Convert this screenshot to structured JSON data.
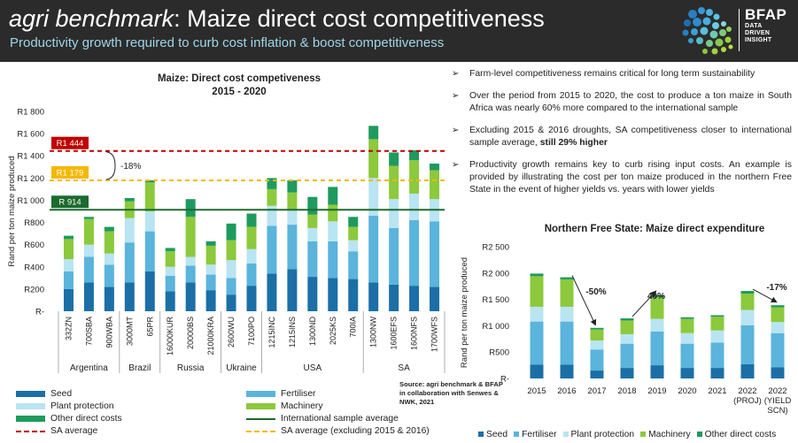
{
  "header": {
    "title_italic": "agri benchmark",
    "title_rest": ": Maize direct cost competitiveness",
    "subtitle": "Productivity growth required to curb cost inflation & boost competitiveness",
    "logo_name": "BFAP",
    "logo_tag": [
      "DATA",
      "DRIVEN",
      "INSIGHT"
    ]
  },
  "colors": {
    "seed": "#1b6fa6",
    "fertiliser": "#5ab4dc",
    "plant_protection": "#b9e4f2",
    "machinery": "#8cc93c",
    "other": "#1f9a5e",
    "intl_avg": "#1b6b2e",
    "sa_avg": "#c00000",
    "sa_avg_excl": "#f2b900",
    "label_sa": "#c00000",
    "label_excl": "#f5b800",
    "label_intl": "#1b6b2e"
  },
  "bullets": [
    {
      "text": "Farm-level competitiveness remains critical for long term sustainability",
      "bold": ""
    },
    {
      "text": "Over the period from 2015 to 2020, the cost to produce a ton maize in South Africa was nearly 60% more compared to the international sample",
      "bold": ""
    },
    {
      "text": "Excluding 2015 & 2016 droughts, SA competitiveness closer to international sample average, ",
      "bold": "still 29% higher"
    },
    {
      "text": "Productivity growth remains key to curb rising input costs. An example is provided by illustrating the cost per ton maize produced in the northern Free State in the event of higher yields vs. years with lower yields",
      "bold": ""
    }
  ],
  "source": "Source: agri benchmark & BFAP in collaboration with Senwes & NWK, 2021",
  "legend1": [
    {
      "type": "box",
      "color": "#1b6fa6",
      "label": "Seed"
    },
    {
      "type": "box",
      "color": "#5ab4dc",
      "label": "Fertiliser"
    },
    {
      "type": "box",
      "color": "#b9e4f2",
      "label": "Plant protection"
    },
    {
      "type": "box",
      "color": "#8cc93c",
      "label": "Machinery"
    },
    {
      "type": "box",
      "color": "#1f9a5e",
      "label": "Other direct costs"
    },
    {
      "type": "line",
      "color": "#1b6b2e",
      "label": "International sample average"
    },
    {
      "type": "dash",
      "color": "#c00000",
      "label": "SA average"
    },
    {
      "type": "dash",
      "color": "#f2b900",
      "label": "SA average (excluding 2015 & 2016)"
    }
  ],
  "legend2": [
    {
      "color": "#1b6fa6",
      "label": "Seed"
    },
    {
      "color": "#5ab4dc",
      "label": "Fertiliser"
    },
    {
      "color": "#b9e4f2",
      "label": "Plant protection"
    },
    {
      "color": "#8cc93c",
      "label": "Machinery"
    },
    {
      "color": "#1f9a5e",
      "label": "Other direct costs"
    }
  ],
  "chart_data": [
    {
      "type": "bar",
      "stacked": true,
      "title": "Maize: Direct cost competiveness",
      "subtitle": "2015 - 2020",
      "ylabel": "Rand per ton maize produced",
      "ylim": [
        0,
        1800
      ],
      "yticks": [
        0,
        200,
        400,
        600,
        800,
        1000,
        1200,
        1400,
        1600,
        1800
      ],
      "ytick_labels": [
        "R-",
        "R200",
        "R400",
        "R600",
        "R800",
        "R1 000",
        "R1 200",
        "R1 400",
        "R1 600",
        "R1 800"
      ],
      "categories": [
        "332ZN",
        "700SBA",
        "900WBA",
        "3000MT",
        "65PR",
        "16000KUR",
        "20000BS",
        "21000KRA",
        "2600WU",
        "7100PO",
        "1215INC",
        "1215INS",
        "1300ND",
        "2025KS",
        "700IA",
        "1300NW",
        "1600EFS",
        "1600NFS",
        "1700WFS"
      ],
      "groups": [
        {
          "name": "Argentina",
          "from": 0,
          "to": 2
        },
        {
          "name": "Brazil",
          "from": 3,
          "to": 4
        },
        {
          "name": "Russia",
          "from": 5,
          "to": 7
        },
        {
          "name": "Ukraine",
          "from": 8,
          "to": 9
        },
        {
          "name": "USA",
          "from": 10,
          "to": 14
        },
        {
          "name": "SA",
          "from": 15,
          "to": 18
        }
      ],
      "series": [
        {
          "name": "Seed",
          "values": [
            200,
            260,
            220,
            260,
            360,
            180,
            260,
            190,
            150,
            230,
            340,
            380,
            310,
            300,
            290,
            260,
            240,
            230,
            220
          ]
        },
        {
          "name": "Fertiliser",
          "values": [
            160,
            230,
            200,
            360,
            360,
            140,
            150,
            140,
            150,
            200,
            430,
            400,
            320,
            330,
            250,
            600,
            510,
            590,
            590
          ]
        },
        {
          "name": "Plant protection",
          "values": [
            110,
            110,
            100,
            220,
            180,
            80,
            80,
            90,
            160,
            130,
            180,
            140,
            120,
            180,
            100,
            340,
            260,
            240,
            200
          ]
        },
        {
          "name": "Machinery",
          "values": [
            180,
            230,
            200,
            150,
            260,
            140,
            360,
            170,
            180,
            200,
            150,
            150,
            120,
            150,
            120,
            350,
            300,
            300,
            260
          ]
        },
        {
          "name": "Other direct costs",
          "values": [
            30,
            20,
            40,
            30,
            20,
            30,
            160,
            40,
            150,
            120,
            100,
            110,
            160,
            160,
            90,
            120,
            120,
            90,
            60
          ]
        }
      ],
      "reference_lines": [
        {
          "name": "SA average",
          "value": 1444,
          "label": "R1 444"
        },
        {
          "name": "SA average (excluding 2015 & 2016)",
          "value": 1179,
          "label": "R1 179"
        },
        {
          "name": "International sample average",
          "value": 914,
          "label": "R 914"
        }
      ],
      "annotation": "-18%"
    },
    {
      "type": "bar",
      "stacked": true,
      "title": "Northern Free State: Maize direct expenditure",
      "ylabel": "Rand per ton maize produced",
      "ylim": [
        0,
        2500
      ],
      "yticks": [
        0,
        500,
        1000,
        1500,
        2000,
        2500
      ],
      "ytick_labels": [
        "R-",
        "R500",
        "R1 000",
        "R1 500",
        "R2 000",
        "R2 500"
      ],
      "categories": [
        "2015",
        "2016",
        "2017",
        "2018",
        "2019",
        "2020",
        "2021",
        "2022 (PROJ)",
        "2022 (YIELD SCN)"
      ],
      "category_lines": [
        [
          "2015"
        ],
        [
          "2016"
        ],
        [
          "2017"
        ],
        [
          "2018"
        ],
        [
          "2019"
        ],
        [
          "2020"
        ],
        [
          "2021"
        ],
        [
          "2022",
          "(PROJ)"
        ],
        [
          "2022",
          "(YIELD",
          "SCN)"
        ]
      ],
      "series": [
        {
          "name": "Seed",
          "values": [
            260,
            260,
            150,
            200,
            250,
            200,
            200,
            270,
            210
          ]
        },
        {
          "name": "Fertiliser",
          "values": [
            820,
            820,
            400,
            460,
            640,
            460,
            480,
            740,
            650
          ]
        },
        {
          "name": "Plant protection",
          "values": [
            280,
            280,
            170,
            180,
            240,
            200,
            230,
            290,
            210
          ]
        },
        {
          "name": "Machinery",
          "values": [
            580,
            520,
            210,
            260,
            410,
            270,
            260,
            310,
            280
          ]
        },
        {
          "name": "Other direct costs",
          "values": [
            50,
            40,
            30,
            40,
            40,
            30,
            30,
            50,
            40
          ]
        }
      ],
      "annotations": [
        {
          "text": "-50%",
          "from": 1,
          "to": 2
        },
        {
          "text": "40%",
          "from": 3,
          "to": 4
        },
        {
          "text": "-17%",
          "from": 7,
          "to": 8
        }
      ]
    }
  ]
}
